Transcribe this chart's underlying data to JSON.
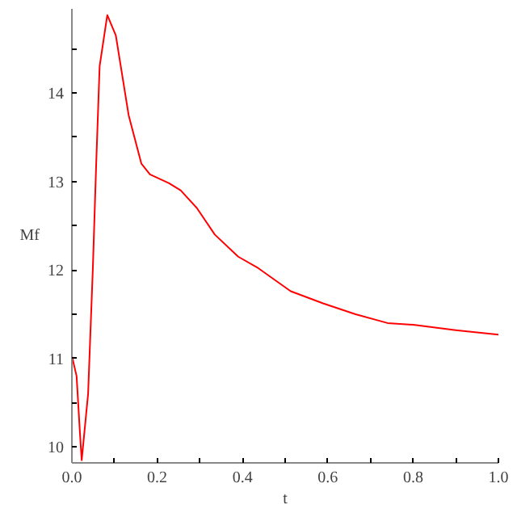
{
  "chart_data": {
    "type": "line",
    "xlabel": "t",
    "ylabel": "Mf",
    "x": [
      0.0,
      0.011,
      0.019,
      0.023,
      0.038,
      0.049,
      0.057,
      0.065,
      0.083,
      0.103,
      0.133,
      0.163,
      0.183,
      0.228,
      0.255,
      0.293,
      0.335,
      0.39,
      0.437,
      0.513,
      0.59,
      0.665,
      0.74,
      0.8,
      0.9,
      1.0
    ],
    "series": [
      {
        "color": "#ff0000",
        "values": [
          11.03,
          10.8,
          10.15,
          9.85,
          10.6,
          12.0,
          13.2,
          14.3,
          14.88,
          14.65,
          13.75,
          13.2,
          13.08,
          12.98,
          12.9,
          12.7,
          12.4,
          12.15,
          12.02,
          11.76,
          11.62,
          11.5,
          11.4,
          11.38,
          11.32,
          11.27
        ]
      }
    ],
    "xlim": [
      0.0,
      1.0
    ],
    "ylim": [
      9.82,
      14.95
    ],
    "xticks": [
      {
        "value": 0.0,
        "label": "0.0"
      },
      {
        "value": 0.1,
        "label": null
      },
      {
        "value": 0.2,
        "label": "0.2"
      },
      {
        "value": 0.3,
        "label": null
      },
      {
        "value": 0.4,
        "label": "0.4"
      },
      {
        "value": 0.5,
        "label": null
      },
      {
        "value": 0.6,
        "label": "0.6"
      },
      {
        "value": 0.7,
        "label": null
      },
      {
        "value": 0.8,
        "label": "0.8"
      },
      {
        "value": 0.9,
        "label": null
      },
      {
        "value": 1.0,
        "label": "1.0"
      }
    ],
    "yticks": [
      10,
      {
        "value": 10.5,
        "label": null
      },
      11,
      {
        "value": 11.5,
        "label": null
      },
      12,
      {
        "value": 12.5,
        "label": null
      },
      13,
      {
        "value": 13.5,
        "label": null
      },
      14,
      {
        "value": 14.5,
        "label": null
      }
    ],
    "grid": false
  }
}
